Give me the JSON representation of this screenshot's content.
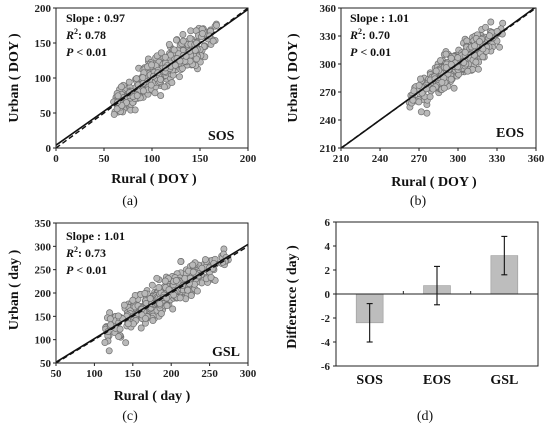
{
  "chart_data": [
    {
      "type": "scatter",
      "panel_label": "(a)",
      "tag": "SOS",
      "xlabel": "Rural ( DOY )",
      "ylabel": "Urban ( DOY )",
      "xlim": [
        0,
        200
      ],
      "ylim": [
        0,
        200
      ],
      "xticks": [
        "0",
        "50",
        "100",
        "150",
        "200"
      ],
      "yticks": [
        "0",
        "50",
        "100",
        "150",
        "200"
      ],
      "annotations": {
        "slope": "Slope : 0.97",
        "r2_label": "R",
        "r2_sup": "2",
        "r2_value": ": 0.78",
        "p_label": "P",
        "p_value": " < 0.01"
      },
      "cloud": {
        "x_center": 112,
        "x_spread": 27,
        "x_min": 60,
        "x_max": 168,
        "fit_intercept": 4,
        "fit_slope": 0.97,
        "y_noise": 12,
        "n": 420,
        "seed": 11
      },
      "fit_line": {
        "slope": 0.97,
        "intercept": 4
      },
      "one_to_one": true
    },
    {
      "type": "scatter",
      "panel_label": "(b)",
      "tag": "EOS",
      "xlabel": "Rural ( DOY )",
      "ylabel": "Urban ( DOY )",
      "xlim": [
        210,
        360
      ],
      "ylim": [
        210,
        360
      ],
      "xticks": [
        "210",
        "240",
        "270",
        "300",
        "330",
        "360"
      ],
      "yticks": [
        "210",
        "240",
        "270",
        "300",
        "330",
        "360"
      ],
      "annotations": {
        "slope": "Slope : 1.01",
        "r2_label": "R",
        "r2_sup": "2",
        "r2_value": ": 0.70",
        "p_label": "P",
        "p_value": " < 0.01"
      },
      "cloud": {
        "x_center": 297,
        "x_spread": 16,
        "x_min": 262,
        "x_max": 335,
        "fit_intercept": -2.4,
        "fit_slope": 1.01,
        "y_noise": 8,
        "n": 420,
        "seed": 23
      },
      "fit_line": {
        "slope": 1.01,
        "intercept": -2.4
      },
      "one_to_one": true
    },
    {
      "type": "scatter",
      "panel_label": "(c)",
      "tag": "GSL",
      "xlabel": "Rural ( day )",
      "ylabel": "Urban ( day )",
      "xlim": [
        50,
        300
      ],
      "ylim": [
        50,
        350
      ],
      "xticks": [
        "50",
        "100",
        "150",
        "200",
        "250",
        "300"
      ],
      "yticks": [
        "50",
        "100",
        "150",
        "200",
        "250",
        "300",
        "350"
      ],
      "annotations": {
        "slope": "Slope : 1.01",
        "r2_label": "R",
        "r2_sup": "2",
        "r2_value": ": 0.73",
        "p_label": "P",
        "p_value": " < 0.01"
      },
      "cloud": {
        "x_center": 192,
        "x_spread": 36,
        "x_min": 110,
        "x_max": 275,
        "fit_intercept": 1.2,
        "fit_slope": 1.01,
        "y_noise": 17,
        "n": 420,
        "seed": 37
      },
      "fit_line": {
        "slope": 1.01,
        "intercept": 1.2
      },
      "one_to_one": true
    },
    {
      "type": "bar",
      "panel_label": "(d)",
      "categories": [
        "SOS",
        "EOS",
        "GSL"
      ],
      "values": [
        -2.4,
        0.7,
        3.2
      ],
      "errors": [
        1.6,
        1.6,
        1.6
      ],
      "ylabel": "Difference ( day )",
      "ylim": [
        -6,
        6
      ],
      "yticks": [
        "-6",
        "-4",
        "-2",
        "0",
        "2",
        "4",
        "6"
      ]
    }
  ],
  "colors": {
    "point_fill": "#b9b9b9",
    "point_stroke": "#6f6f6f",
    "bar_fill": "#bdbdbd",
    "axis": "#222222"
  }
}
